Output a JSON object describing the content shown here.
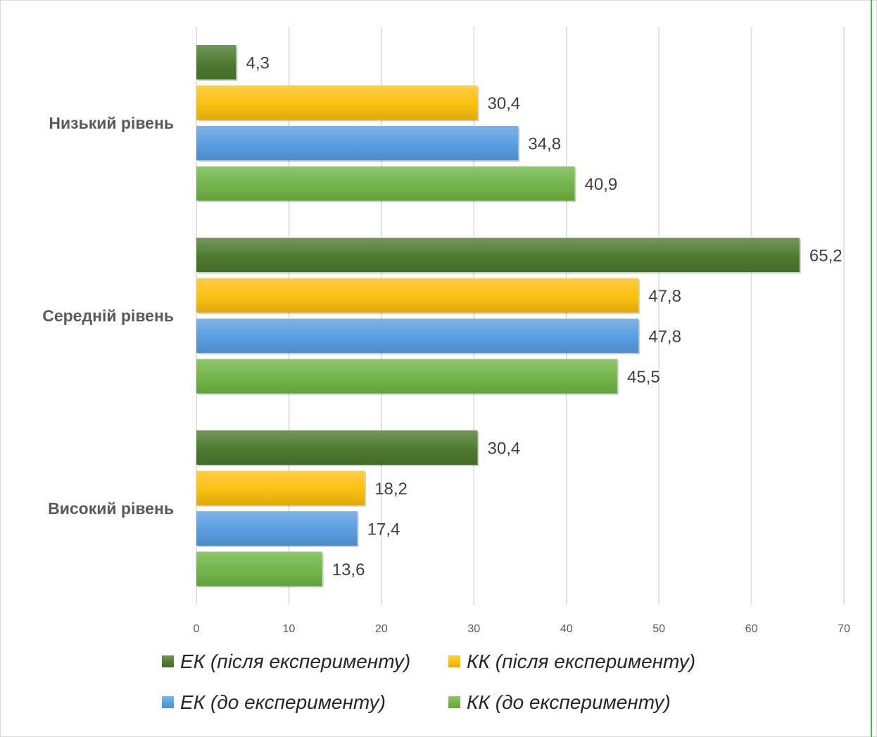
{
  "chart_data": {
    "type": "bar",
    "orientation": "horizontal",
    "categories": [
      "Низький рівень",
      "Середній рівень",
      "Високий рівень"
    ],
    "series": [
      {
        "name": "ЕК (після експерименту)",
        "color": "#4e7a30",
        "values": [
          4.3,
          65.2,
          30.4
        ],
        "labels": [
          "4,3",
          "65,2",
          "30,4"
        ]
      },
      {
        "name": "КК (після експерименту)",
        "color": "#fdc010",
        "values": [
          30.4,
          47.8,
          18.2
        ],
        "labels": [
          "30,4",
          "47,8",
          "18,2"
        ]
      },
      {
        "name": "ЕК (до експерименту)",
        "color": "#5a9ee0",
        "values": [
          34.8,
          47.8,
          17.4
        ],
        "labels": [
          "34,8",
          "47,8",
          "17,4"
        ]
      },
      {
        "name": "КК (до експерименту)",
        "color": "#72b548",
        "values": [
          40.9,
          45.5,
          13.6
        ],
        "labels": [
          "40,9",
          "45,5",
          "13,6"
        ]
      }
    ],
    "xlim": [
      0,
      70
    ],
    "ticks": [
      "0",
      "10",
      "20",
      "30",
      "40",
      "50",
      "60",
      "70"
    ],
    "grid": true,
    "legend_position": "bottom",
    "title": "",
    "xlabel": "",
    "ylabel": ""
  }
}
